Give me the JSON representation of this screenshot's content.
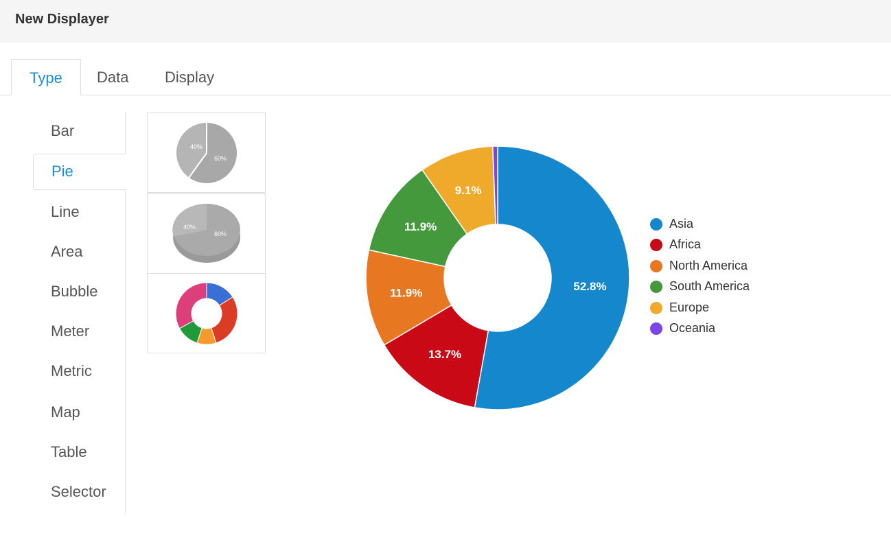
{
  "header": {
    "title": "New Displayer"
  },
  "tabs": [
    {
      "label": "Type",
      "active": true
    },
    {
      "label": "Data",
      "active": false
    },
    {
      "label": "Display",
      "active": false
    }
  ],
  "types": [
    {
      "label": "Bar"
    },
    {
      "label": "Pie",
      "active": true
    },
    {
      "label": "Line"
    },
    {
      "label": "Area"
    },
    {
      "label": "Bubble"
    },
    {
      "label": "Meter"
    },
    {
      "label": "Metric"
    },
    {
      "label": "Map"
    },
    {
      "label": "Table"
    },
    {
      "label": "Selector"
    }
  ],
  "subtypes": [
    {
      "name": "pie-2d",
      "labels": [
        "40%",
        "60%"
      ]
    },
    {
      "name": "pie-3d",
      "labels": [
        "40%",
        "60%"
      ]
    },
    {
      "name": "donut"
    }
  ],
  "colors": {
    "accent": "#1a8fd6",
    "Asia": "#1587cc",
    "Africa": "#c90a16",
    "North America": "#e87722",
    "South America": "#43993c",
    "Europe": "#efaa2b",
    "Oceania": "#7c45e8"
  },
  "chart_data": {
    "type": "pie",
    "style": "donut",
    "legend_position": "right",
    "slices": [
      {
        "name": "Asia",
        "value": 52.8,
        "label": "52.8%"
      },
      {
        "name": "Africa",
        "value": 13.7,
        "label": "13.7%"
      },
      {
        "name": "North America",
        "value": 11.9,
        "label": "11.9%"
      },
      {
        "name": "South America",
        "value": 11.9,
        "label": "11.9%"
      },
      {
        "name": "Europe",
        "value": 9.1,
        "label": "9.1%"
      },
      {
        "name": "Oceania",
        "value": 0.6,
        "label": ""
      }
    ]
  }
}
